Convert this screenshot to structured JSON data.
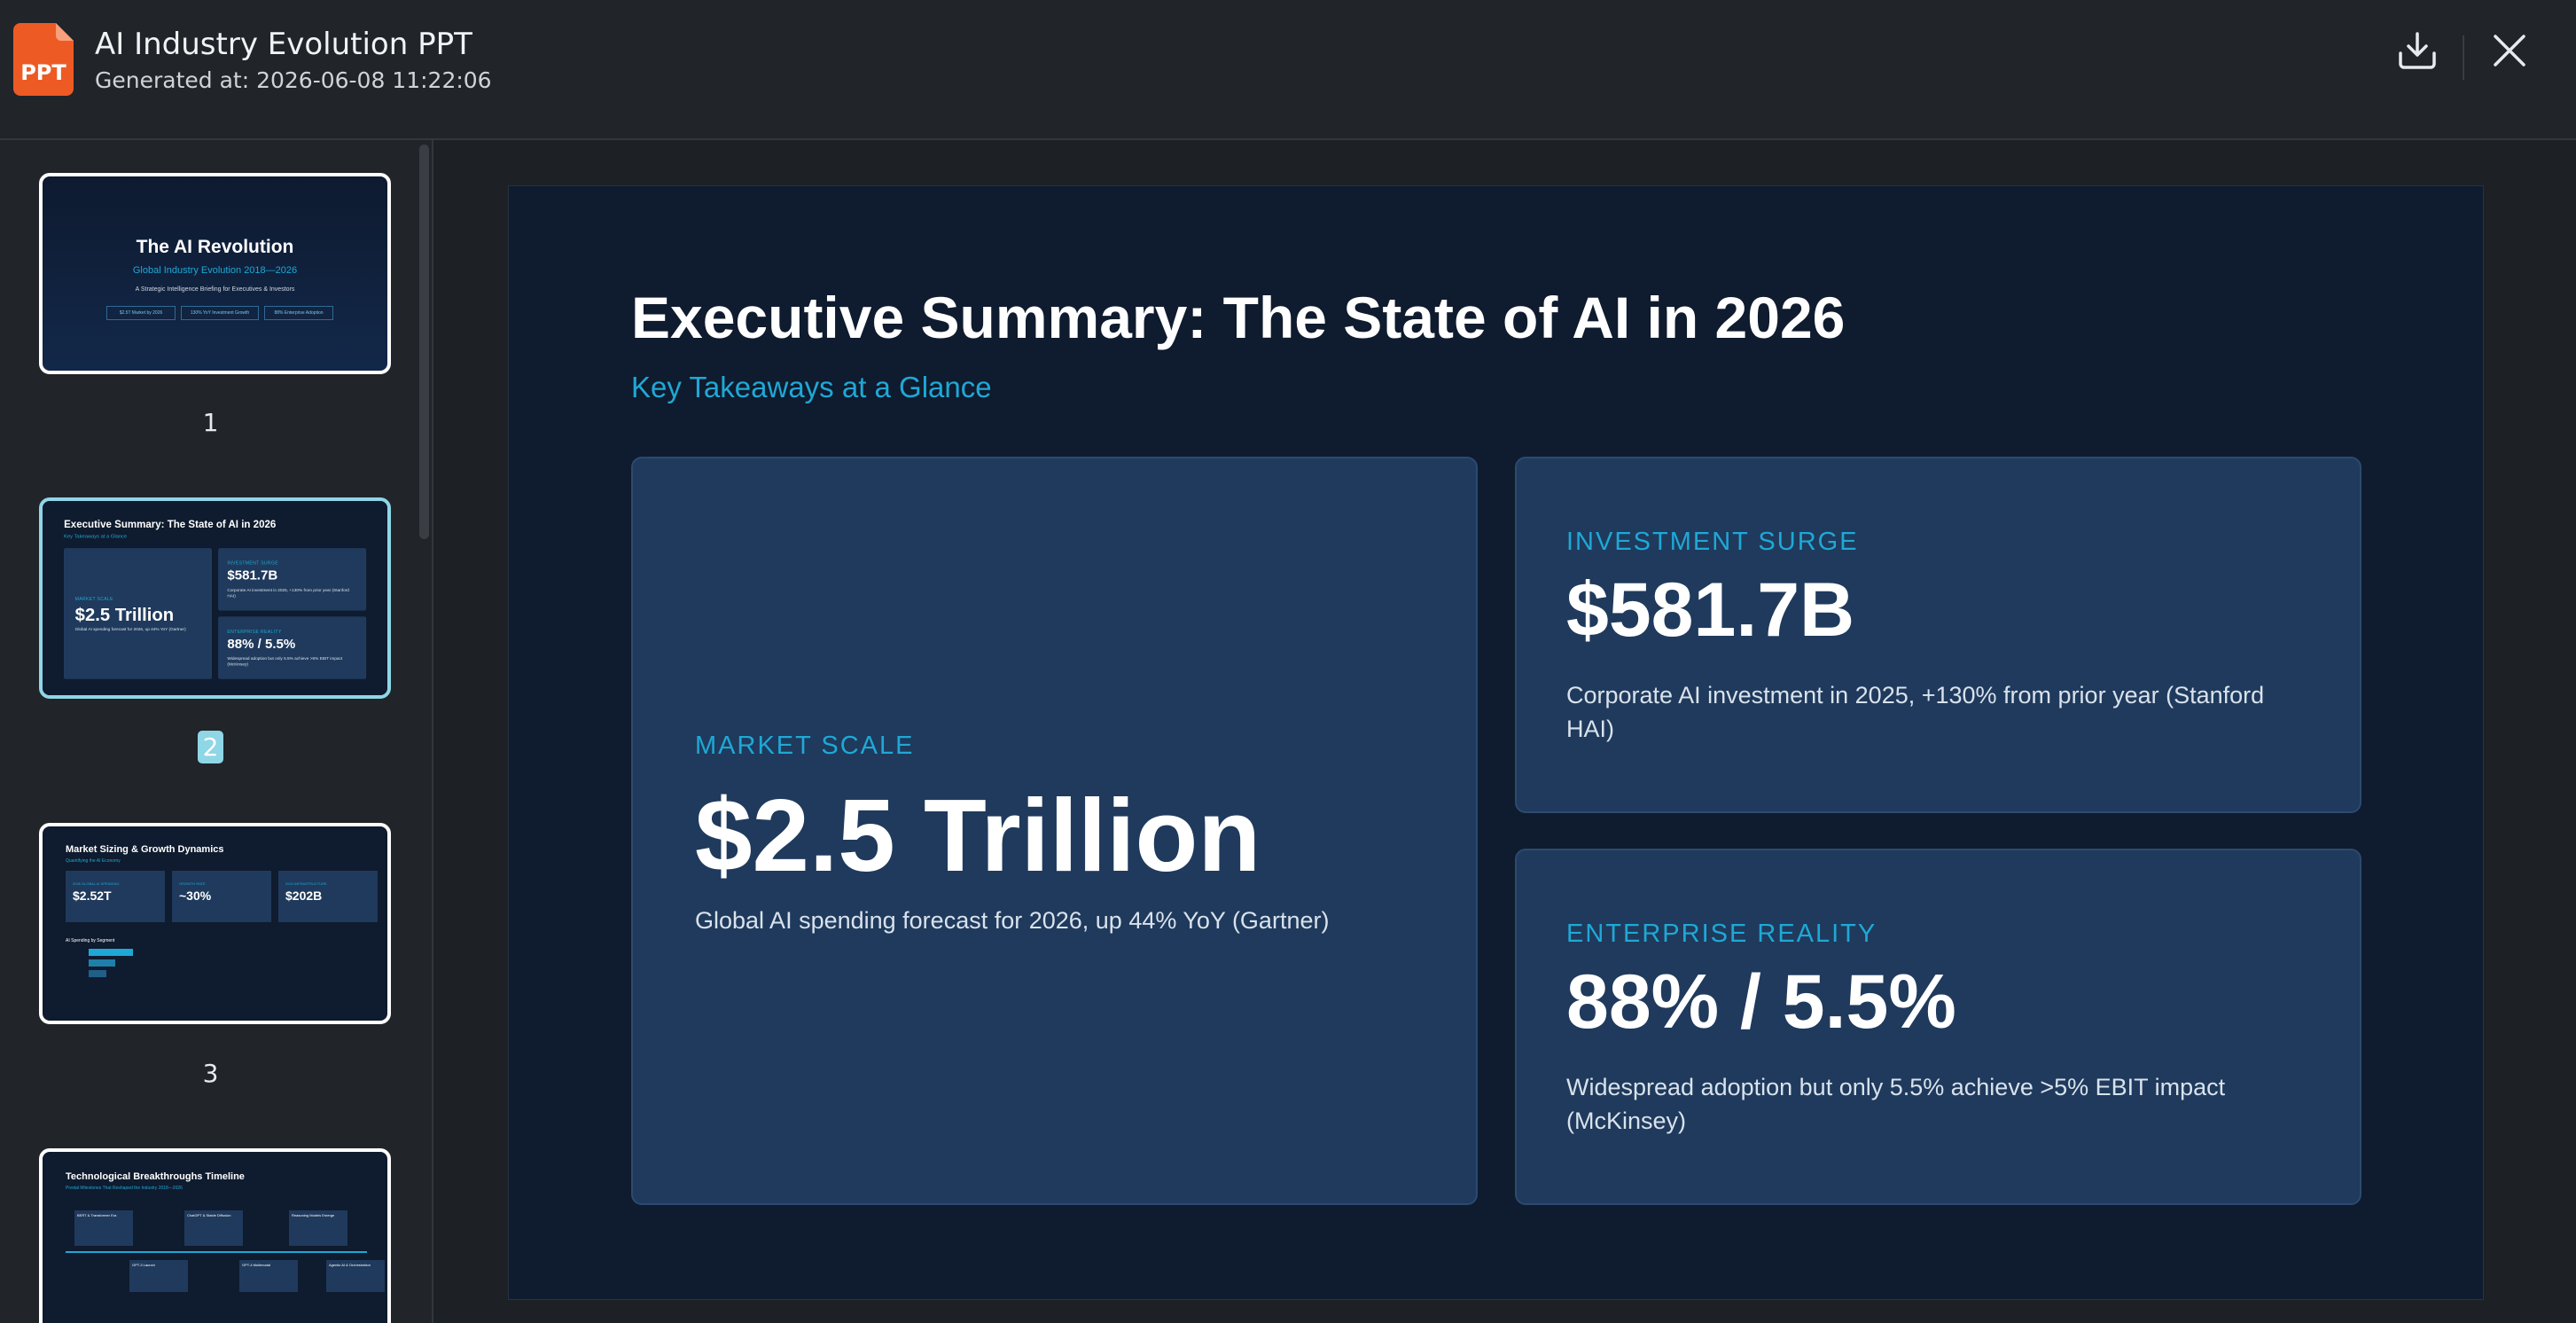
{
  "header": {
    "icon_label": "PPT",
    "title": "AI Industry Evolution PPT",
    "subtitle": "Generated at: 2026-06-08 11:22:06"
  },
  "thumbnails": [
    {
      "number": "1",
      "title": "The AI Revolution",
      "subtitle": "Global Industry Evolution 2018—2026",
      "tagline": "A Strategic Intelligence Briefing for Executives & Investors",
      "chips": [
        "$2.5T Market by 2026",
        "130% YoY Investment Growth",
        "88% Enterprise Adoption"
      ]
    },
    {
      "number": "2"
    },
    {
      "number": "3",
      "title": "Market Sizing & Growth Dynamics",
      "subtitle": "Quantifying the AI Economy",
      "stats": [
        {
          "label": "2026 GLOBAL AI SPENDING",
          "value": "$2.52T"
        },
        {
          "label": "GROWTH RATE",
          "value": "~30%"
        },
        {
          "label": "2024 INFRASTRUCTURE",
          "value": "$202B"
        }
      ],
      "chart_title": "AI Spending by Segment"
    },
    {
      "number": "4",
      "title": "Technological Breakthroughs Timeline",
      "subtitle": "Pivotal Milestones That Reshaped the Industry 2018—2026",
      "events": [
        "BERT & Transformer Era",
        "GPT-3 Launch",
        "ChatGPT & Stable Diffusion",
        "GPT-4 Multimodal",
        "Reasoning Models Emerge",
        "Agentic AI & Orchestration"
      ]
    }
  ],
  "slide": {
    "title": "Executive Summary: The State of AI in 2026",
    "subtitle": "Key Takeaways at a Glance",
    "cards": [
      {
        "label": "MARKET SCALE",
        "value": "$2.5 Trillion",
        "text": "Global AI spending forecast for 2026, up 44% YoY (Gartner)"
      },
      {
        "label": "INVESTMENT SURGE",
        "value": "$581.7B",
        "text": "Corporate AI investment in 2025, +130% from prior year (Stanford HAI)"
      },
      {
        "label": "ENTERPRISE REALITY",
        "value": "88% / 5.5%",
        "text": "Widespread adoption but only 5.5% achieve >5% EBIT impact (McKinsey)"
      }
    ]
  }
}
